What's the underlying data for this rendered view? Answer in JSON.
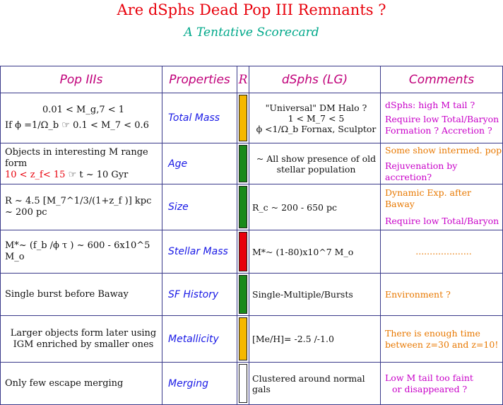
{
  "title": "Are dSphs Dead Pop III Remnants ?",
  "subtitle": "A Tentative Scorecard",
  "headers": {
    "pop3": "Pop IIIs",
    "properties": "Properties",
    "r": "R",
    "dsphs": "dSphs (LG)",
    "comments": "Comments"
  },
  "rows": {
    "mass": {
      "pop3_line1": "0.01 < M_g,7 < 1",
      "pop3_line2": "If ϕ =1/Ω_b ☞ 0.1 < M_7 < 0.6",
      "property": "Total Mass",
      "rating_color": "#f5b800",
      "dsph_line1": "\"Universal\" DM Halo ?",
      "dsph_line2": "1 < M_7 < 5",
      "dsph_line3": "ϕ <1/Ω_b Fornax, Sculptor",
      "comment_line1": "dSphs: high M tail ?",
      "comment_line2": "Require low Total/Baryon",
      "comment_line3": "Formation ? Accretion ?"
    },
    "age": {
      "pop3_line1": "Objects in interesting M range form",
      "pop3_line2_red": "10 < z_f< 15",
      "pop3_line2_rest": "☞ t ~ 10 Gyr",
      "property": "Age",
      "rating_color": "#1a8a1a",
      "dsph_line1": "~ All show presence of old",
      "dsph_line2": "stellar population",
      "comment_line1": "Some show intermed. pop",
      "comment_line2": "Rejuvenation by accretion?"
    },
    "size": {
      "pop3": "R ~ 4.5 [M_7^1/3/(1+z_f )] kpc ~ 200 pc",
      "property": "Size",
      "rating_color": "#1a8a1a",
      "dsph": "R_c ~ 200 - 650 pc",
      "comment_line1": "Dynamic Exp. after Baway",
      "comment_line2": "Require low Total/Baryon"
    },
    "stellar": {
      "pop3": "M*~ (f_b /ϕ τ ) ~ 600 - 6x10^5 M_o",
      "property": "Stellar Mass",
      "rating_color": "#e8000b",
      "dsph": "M*~ (1-80)x10^7 M_o",
      "comment": "...................."
    },
    "sfh": {
      "pop3": "Single burst before Baway",
      "property": "SF History",
      "rating_color": "#1a8a1a",
      "dsph": "Single-Multiple/Bursts",
      "comment": "Environment ?"
    },
    "metal": {
      "pop3_line1": "Larger objects form later using",
      "pop3_line2": "IGM enriched by smaller ones",
      "property": "Metallicity",
      "rating_color": "#f5b800",
      "dsph": "[Me/H]= -2.5 /-1.0",
      "comment_line1": "There is enough time",
      "comment_line2": "between z=30 and z=10!"
    },
    "merging": {
      "pop3": "Only few escape merging",
      "property": "Merging",
      "rating_color": "#ffffff",
      "dsph": "Clustered around normal gals",
      "comment_line1": "Low M tail too faint",
      "comment_line2": "or disappeared ?"
    }
  }
}
